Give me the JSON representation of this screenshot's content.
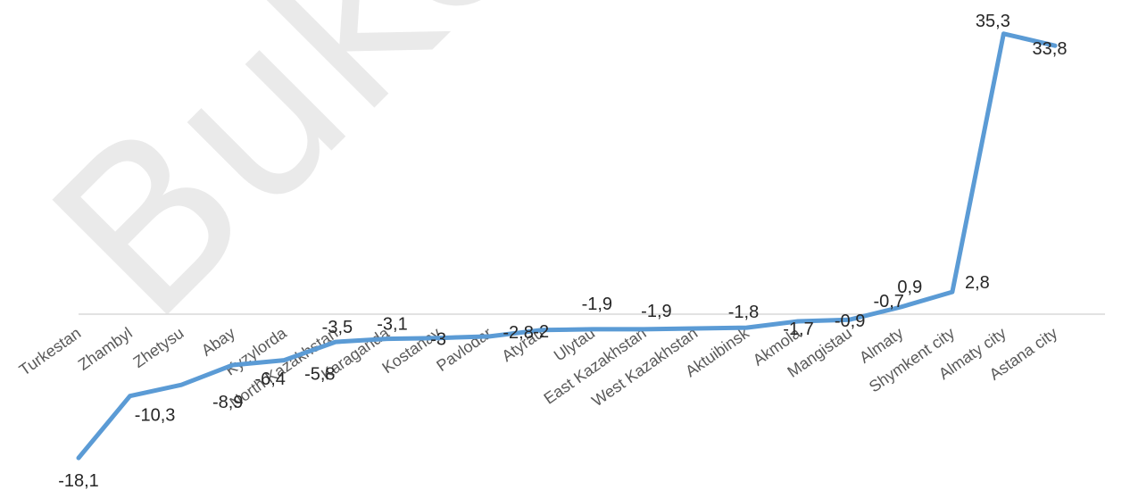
{
  "watermark": "Buketov",
  "chart_data": {
    "type": "line",
    "title": "",
    "xlabel": "",
    "ylabel": "",
    "categories": [
      "Turkestan",
      "Zhambyl",
      "Zhetysu",
      "Abay",
      "Kyzylorda",
      "North Kazakhstan",
      "Karaganda",
      "Kostanay",
      "Pavlodar",
      "Atyrau",
      "Ulytau",
      "East Kazakhstan",
      "West Kazakhstan",
      "Aktuibinsk",
      "Akmola",
      "Mangistau",
      "Almaty",
      "Shymkent city",
      "Almaty city",
      "Astana city"
    ],
    "series": [
      {
        "color": "#5b9bd5",
        "values": [
          -18.1,
          -10.3,
          -8.9,
          -6.4,
          -5.8,
          -3.5,
          -3.1,
          -3,
          -2.8,
          -2,
          -1.9,
          -1.9,
          -1.8,
          -1.7,
          -0.9,
          -0.7,
          0.9,
          2.8,
          35.3,
          33.8
        ],
        "labels": [
          "-18,1",
          "-10,3",
          "-8,9",
          "-6,4",
          "-5,8",
          "-3,5",
          "-3,1",
          "-3",
          "-2,8",
          "-2",
          "-1,9",
          "-1,9",
          "-1,8",
          "-1,7",
          "-0,9",
          "-0,7",
          "0,9",
          "2,8",
          "35,3",
          "33,8"
        ]
      }
    ],
    "ylim": [
      -18.1,
      35.3
    ],
    "grid": false,
    "legend": "none"
  }
}
